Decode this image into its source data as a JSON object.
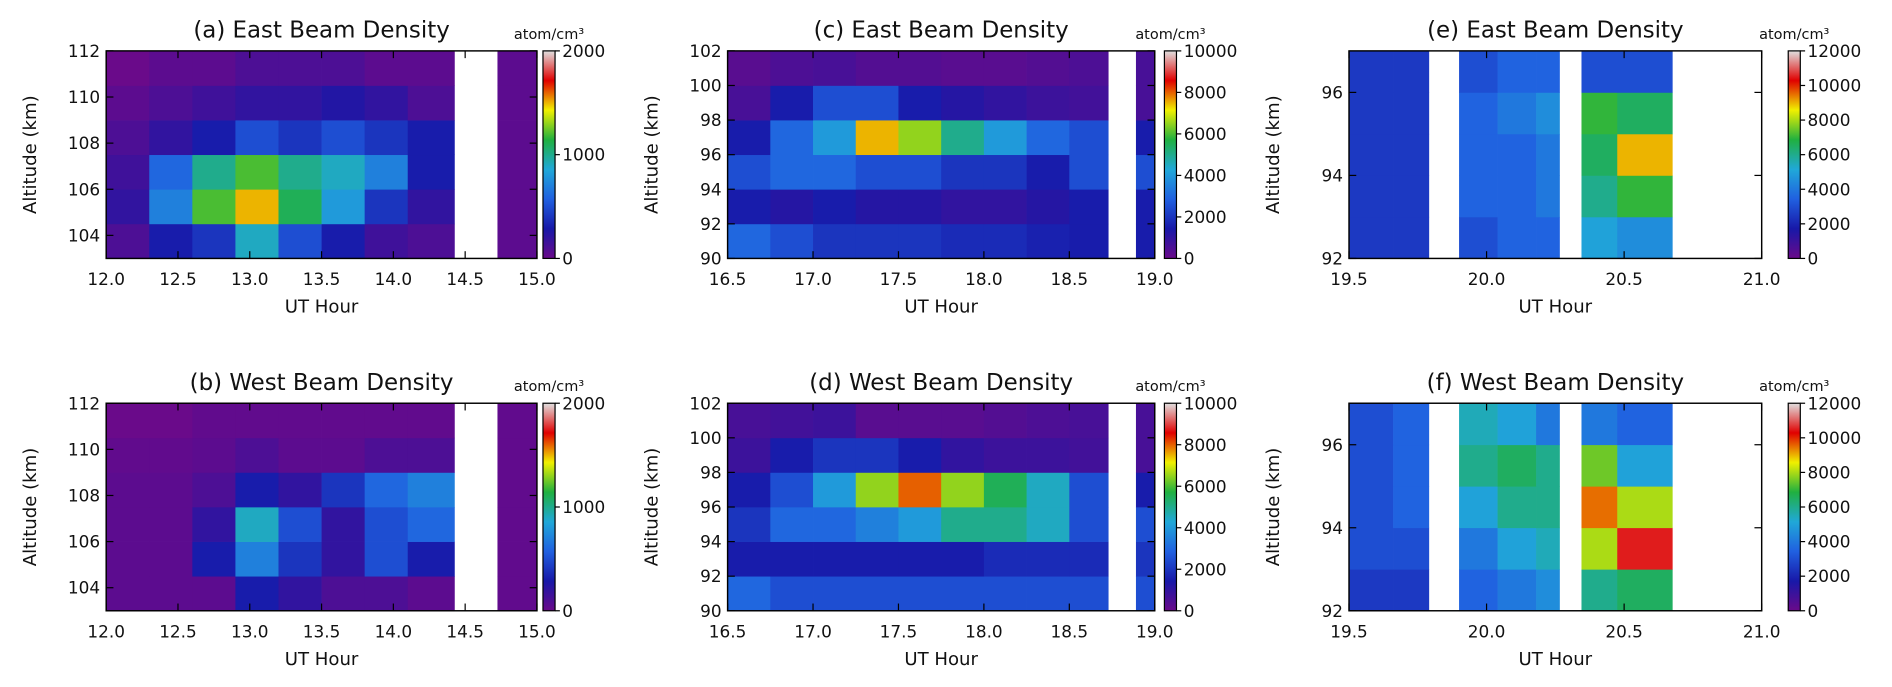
{
  "chart_data": [
    {
      "type": "heatmap",
      "title": "(a)  East Beam Density",
      "xlabel": "UT Hour",
      "ylabel": "Altitude (km)",
      "colorbar_label": "atom/cm³",
      "xlim": [
        12,
        15
      ],
      "xticks": [
        {
          "value": 12,
          "label": "12.0"
        },
        {
          "value": 12.5,
          "label": "12.5"
        },
        {
          "value": 13,
          "label": "13.0"
        },
        {
          "value": 13.5,
          "label": "13.5"
        },
        {
          "value": 14,
          "label": "14.0"
        },
        {
          "value": 14.5,
          "label": "14.5"
        },
        {
          "value": 15,
          "label": "15.0"
        }
      ],
      "ylim": [
        103,
        112
      ],
      "yticks": [
        104,
        106,
        108,
        110,
        112
      ],
      "clim": [
        0,
        2000
      ],
      "cticks": [
        0,
        1000,
        2000
      ],
      "colormap": [
        "#6a0a8a",
        "#1818a8",
        "#2060e0",
        "#20a8d8",
        "#20b040",
        "#f0f000",
        "#e00000",
        "#e0e0e0"
      ],
      "x": [
        12.15,
        12.45,
        12.75,
        13.05,
        13.35,
        13.65,
        13.95,
        14.25,
        14.6,
        14.85
      ],
      "y": [
        103.75,
        105.25,
        106.75,
        108.25,
        109.75,
        111.25
      ],
      "z": [
        [
          100,
          300,
          400,
          900,
          500,
          300,
          150,
          100,
          null,
          50
        ],
        [
          200,
          700,
          1200,
          1500,
          1100,
          800,
          400,
          200,
          null,
          50
        ],
        [
          150,
          600,
          1000,
          1200,
          1000,
          900,
          700,
          300,
          null,
          50
        ],
        [
          100,
          200,
          300,
          500,
          400,
          500,
          400,
          300,
          null,
          50
        ],
        [
          50,
          100,
          150,
          200,
          200,
          250,
          200,
          100,
          null,
          50
        ],
        [
          0,
          50,
          50,
          100,
          100,
          100,
          50,
          50,
          null,
          50
        ]
      ]
    },
    {
      "type": "heatmap",
      "title": "(b)  West Beam Density",
      "xlabel": "UT Hour",
      "ylabel": "Altitude (km)",
      "colorbar_label": "atom/cm³",
      "xlim": [
        12,
        15
      ],
      "xticks": [
        {
          "value": 12,
          "label": "12.0"
        },
        {
          "value": 12.5,
          "label": "12.5"
        },
        {
          "value": 13,
          "label": "13.0"
        },
        {
          "value": 13.5,
          "label": "13.5"
        },
        {
          "value": 14,
          "label": "14.0"
        },
        {
          "value": 14.5,
          "label": "14.5"
        },
        {
          "value": 15,
          "label": "15.0"
        }
      ],
      "ylim": [
        103,
        112
      ],
      "yticks": [
        104,
        106,
        108,
        110,
        112
      ],
      "clim": [
        0,
        2000
      ],
      "cticks": [
        0,
        1000,
        2000
      ],
      "colormap": [
        "#6a0a8a",
        "#1818a8",
        "#2060e0",
        "#20a8d8",
        "#20b040",
        "#f0f000",
        "#e00000",
        "#e0e0e0"
      ],
      "x": [
        12.15,
        12.45,
        12.75,
        13.05,
        13.35,
        13.65,
        13.95,
        14.25,
        14.6,
        14.85
      ],
      "y": [
        103.75,
        105.25,
        106.75,
        108.25,
        109.75,
        111.25
      ],
      "z": [
        [
          50,
          50,
          50,
          300,
          200,
          100,
          100,
          50,
          null,
          30
        ],
        [
          50,
          50,
          300,
          700,
          400,
          200,
          500,
          300,
          null,
          30
        ],
        [
          50,
          50,
          200,
          900,
          500,
          200,
          500,
          600,
          null,
          30
        ],
        [
          50,
          50,
          100,
          300,
          200,
          400,
          600,
          700,
          null,
          30
        ],
        [
          30,
          30,
          50,
          100,
          50,
          50,
          100,
          100,
          null,
          30
        ],
        [
          0,
          0,
          30,
          30,
          30,
          30,
          30,
          30,
          null,
          30
        ]
      ]
    },
    {
      "type": "heatmap",
      "title": "(c)  East Beam Density",
      "xlabel": "UT Hour",
      "ylabel": "Altitude (km)",
      "colorbar_label": "atom/cm³",
      "xlim": [
        16.5,
        19
      ],
      "xticks": [
        16.5,
        {
          "value": 17,
          "label": "17.0"
        },
        17.5,
        {
          "value": 18,
          "label": "18.0"
        },
        18.5,
        {
          "value": 19,
          "label": "19.0"
        }
      ],
      "ylim": [
        90,
        102
      ],
      "yticks": [
        90,
        92,
        94,
        96,
        98,
        100,
        102
      ],
      "clim": [
        0,
        10000
      ],
      "cticks": [
        0,
        2000,
        4000,
        6000,
        8000,
        10000
      ],
      "colormap": [
        "#6a0a8a",
        "#1818a8",
        "#2060e0",
        "#20a8d8",
        "#20b040",
        "#f0f000",
        "#e00000",
        "#e0e0e0"
      ],
      "x": [
        16.625,
        16.875,
        17.125,
        17.375,
        17.625,
        17.875,
        18.125,
        18.375,
        18.625,
        18.83,
        18.95
      ],
      "y": [
        91,
        93,
        95,
        97,
        99,
        101
      ],
      "z": [
        [
          3000,
          2500,
          2000,
          2000,
          2000,
          1800,
          1800,
          1600,
          1500,
          null,
          1500
        ],
        [
          1500,
          1200,
          1500,
          1200,
          1200,
          1000,
          1000,
          1200,
          1500,
          null,
          1500
        ],
        [
          2500,
          3000,
          3000,
          2500,
          2500,
          2000,
          2000,
          1500,
          2500,
          null,
          2500
        ],
        [
          1500,
          3000,
          4000,
          7500,
          6500,
          5000,
          4000,
          3000,
          2500,
          null,
          1500
        ],
        [
          600,
          1500,
          2500,
          2500,
          1500,
          1200,
          1000,
          800,
          700,
          null,
          600
        ],
        [
          300,
          500,
          600,
          400,
          400,
          300,
          300,
          400,
          500,
          null,
          600
        ]
      ]
    },
    {
      "type": "heatmap",
      "title": "(d)  West Beam Density",
      "xlabel": "UT Hour",
      "ylabel": "Altitude (km)",
      "colorbar_label": "atom/cm³",
      "xlim": [
        16.5,
        19
      ],
      "xticks": [
        16.5,
        {
          "value": 17,
          "label": "17.0"
        },
        17.5,
        {
          "value": 18,
          "label": "18.0"
        },
        18.5,
        {
          "value": 19,
          "label": "19.0"
        }
      ],
      "ylim": [
        90,
        102
      ],
      "yticks": [
        90,
        92,
        94,
        96,
        98,
        100,
        102
      ],
      "clim": [
        0,
        10000
      ],
      "cticks": [
        0,
        2000,
        4000,
        6000,
        8000,
        10000
      ],
      "colormap": [
        "#6a0a8a",
        "#1818a8",
        "#2060e0",
        "#20a8d8",
        "#20b040",
        "#f0f000",
        "#e00000",
        "#e0e0e0"
      ],
      "x": [
        16.625,
        16.875,
        17.125,
        17.375,
        17.625,
        17.875,
        18.125,
        18.375,
        18.625,
        18.83,
        18.95
      ],
      "y": [
        91,
        93,
        95,
        97,
        99,
        101
      ],
      "z": [
        [
          3000,
          2500,
          2500,
          2500,
          2500,
          2500,
          2500,
          2500,
          2500,
          null,
          2500
        ],
        [
          1500,
          1500,
          1500,
          1500,
          1500,
          1500,
          1800,
          1800,
          1800,
          null,
          2000
        ],
        [
          2000,
          3000,
          3000,
          3500,
          4000,
          5000,
          5000,
          4500,
          2500,
          null,
          2500
        ],
        [
          1500,
          2500,
          4000,
          6500,
          8000,
          6500,
          5500,
          4500,
          2500,
          null,
          1500
        ],
        [
          800,
          1500,
          2000,
          2000,
          1500,
          1000,
          800,
          800,
          700,
          null,
          600
        ],
        [
          600,
          700,
          800,
          300,
          300,
          300,
          400,
          500,
          600,
          null,
          600
        ]
      ]
    },
    {
      "type": "heatmap",
      "title": "(e)  East Beam Density",
      "xlabel": "UT Hour",
      "ylabel": "Altitude (km)",
      "colorbar_label": "atom/cm³",
      "xlim": [
        19.5,
        21
      ],
      "xticks": [
        19.5,
        {
          "value": 20,
          "label": "20.0"
        },
        20.5,
        {
          "value": 21,
          "label": "21.0"
        }
      ],
      "ylim": [
        92,
        97
      ],
      "yticks": [
        92,
        94,
        96
      ],
      "clim": [
        0,
        12000
      ],
      "cticks": [
        0,
        2000,
        4000,
        6000,
        8000,
        10000,
        12000
      ],
      "colormap": [
        "#6a0a8a",
        "#1818a8",
        "#2060e0",
        "#20a8d8",
        "#20b040",
        "#f0f000",
        "#e00000",
        "#e0e0e0"
      ],
      "x": [
        19.58,
        19.74,
        19.84,
        19.96,
        20.12,
        20.24,
        20.29,
        20.4,
        20.55,
        20.8
      ],
      "y": [
        92.5,
        93.5,
        94.5,
        95.5,
        96.5
      ],
      "z": [
        [
          2500,
          2500,
          null,
          3000,
          3500,
          3500,
          null,
          5000,
          4500,
          null
        ],
        [
          2500,
          2500,
          null,
          3500,
          3500,
          4000,
          null,
          6000,
          7000,
          null
        ],
        [
          2500,
          2500,
          null,
          3500,
          3500,
          4000,
          null,
          6500,
          9000,
          null
        ],
        [
          2500,
          2500,
          null,
          3500,
          4000,
          4500,
          null,
          7000,
          6500,
          null
        ],
        [
          2500,
          2500,
          null,
          3000,
          3500,
          3500,
          null,
          3000,
          3000,
          null
        ]
      ]
    },
    {
      "type": "heatmap",
      "title": "(f)  West Beam Density",
      "xlabel": "UT Hour",
      "ylabel": "Altitude (km)",
      "colorbar_label": "atom/cm³",
      "xlim": [
        19.5,
        21
      ],
      "xticks": [
        19.5,
        {
          "value": 20,
          "label": "20.0"
        },
        20.5,
        {
          "value": 21,
          "label": "21.0"
        }
      ],
      "ylim": [
        92,
        97
      ],
      "yticks": [
        92,
        94,
        96
      ],
      "clim": [
        0,
        12000
      ],
      "cticks": [
        0,
        2000,
        4000,
        6000,
        8000,
        10000,
        12000
      ],
      "colormap": [
        "#6a0a8a",
        "#1818a8",
        "#2060e0",
        "#20a8d8",
        "#20b040",
        "#f0f000",
        "#e00000",
        "#e0e0e0"
      ],
      "x": [
        19.58,
        19.74,
        19.84,
        19.96,
        20.12,
        20.24,
        20.29,
        20.4,
        20.55,
        20.8
      ],
      "y": [
        92.5,
        93.5,
        94.5,
        95.5,
        96.5
      ],
      "z": [
        [
          2500,
          2500,
          null,
          3500,
          4000,
          4500,
          null,
          6000,
          6500,
          null
        ],
        [
          3000,
          3000,
          null,
          4000,
          5000,
          5500,
          null,
          8000,
          10500,
          null
        ],
        [
          3000,
          3500,
          null,
          5000,
          6000,
          6000,
          null,
          9500,
          8000,
          null
        ],
        [
          3000,
          3500,
          null,
          6000,
          6500,
          6000,
          null,
          7500,
          5000,
          null
        ],
        [
          3000,
          3500,
          null,
          5500,
          5000,
          4000,
          null,
          4000,
          3500,
          null
        ]
      ]
    }
  ]
}
